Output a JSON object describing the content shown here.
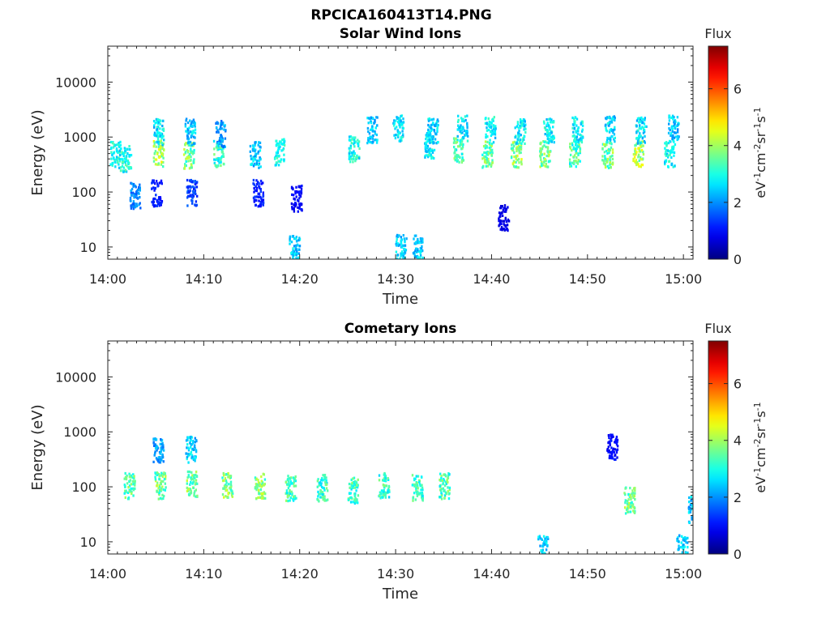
{
  "figure": {
    "title": "RPCICA160413T14.PNG"
  },
  "chart_data": [
    {
      "type": "heatmap",
      "title": "Solar Wind Ions",
      "xlabel": "Time",
      "ylabel": "Energy (eV)",
      "x_ticks": [
        "14:00",
        "14:10",
        "14:20",
        "14:30",
        "14:40",
        "14:50",
        "15:00"
      ],
      "x_range_minutes": [
        0,
        61
      ],
      "y_scale": "log",
      "y_ticks": [
        "10",
        "100",
        "1000",
        "10000"
      ],
      "ylim": [
        6,
        45000
      ],
      "colorbar": {
        "title": "Flux",
        "label": "eV-1cm-2sr-1s-1",
        "range": [
          0,
          7.5
        ],
        "ticks": [
          "0",
          "2",
          "4",
          "6"
        ],
        "colormap": "jet"
      },
      "blobs": [
        {
          "t": 0.7,
          "e": 500,
          "flux": 3.0
        },
        {
          "t": 1.8,
          "e": 420,
          "flux": 3.1
        },
        {
          "t": 2.8,
          "e": 90,
          "flux": 2.0
        },
        {
          "t": 5.2,
          "e": 520,
          "flux": 4.2
        },
        {
          "t": 5.2,
          "e": 1300,
          "flux": 2.8
        },
        {
          "t": 5.0,
          "e": 100,
          "flux": 1.2
        },
        {
          "t": 8.4,
          "e": 480,
          "flux": 3.8
        },
        {
          "t": 8.5,
          "e": 1300,
          "flux": 2.6
        },
        {
          "t": 8.7,
          "e": 100,
          "flux": 1.5
        },
        {
          "t": 11.5,
          "e": 520,
          "flux": 3.3
        },
        {
          "t": 11.7,
          "e": 1200,
          "flux": 2.2
        },
        {
          "t": 15.3,
          "e": 500,
          "flux": 2.6
        },
        {
          "t": 15.6,
          "e": 100,
          "flux": 1.2
        },
        {
          "t": 17.8,
          "e": 560,
          "flux": 3.0
        },
        {
          "t": 19.6,
          "e": 80,
          "flux": 1.0
        },
        {
          "t": 25.6,
          "e": 640,
          "flux": 3.0
        },
        {
          "t": 27.5,
          "e": 1400,
          "flux": 2.5
        },
        {
          "t": 30.2,
          "e": 1500,
          "flux": 2.8
        },
        {
          "t": 33.5,
          "e": 720,
          "flux": 3.0
        },
        {
          "t": 33.8,
          "e": 1400,
          "flux": 2.7
        },
        {
          "t": 36.5,
          "e": 600,
          "flux": 3.5
        },
        {
          "t": 36.9,
          "e": 1500,
          "flux": 2.8
        },
        {
          "t": 39.5,
          "e": 500,
          "flux": 3.8
        },
        {
          "t": 39.8,
          "e": 1400,
          "flux": 2.9
        },
        {
          "t": 42.5,
          "e": 500,
          "flux": 4.0
        },
        {
          "t": 42.9,
          "e": 1300,
          "flux": 2.9
        },
        {
          "t": 45.5,
          "e": 520,
          "flux": 3.8
        },
        {
          "t": 45.9,
          "e": 1300,
          "flux": 2.9
        },
        {
          "t": 48.6,
          "e": 520,
          "flux": 3.5
        },
        {
          "t": 48.9,
          "e": 1400,
          "flux": 2.9
        },
        {
          "t": 52.0,
          "e": 500,
          "flux": 3.8
        },
        {
          "t": 52.3,
          "e": 1450,
          "flux": 2.7
        },
        {
          "t": 55.2,
          "e": 520,
          "flux": 4.3
        },
        {
          "t": 55.5,
          "e": 1400,
          "flux": 2.8
        },
        {
          "t": 58.5,
          "e": 520,
          "flux": 3.0
        },
        {
          "t": 58.9,
          "e": 1500,
          "flux": 2.6
        },
        {
          "t": 19.4,
          "e": 10,
          "flux": 2.6
        },
        {
          "t": 30.5,
          "e": 10,
          "flux": 2.6
        },
        {
          "t": 32.2,
          "e": 10,
          "flux": 2.6
        },
        {
          "t": 41.2,
          "e": 35,
          "flux": 0.8
        }
      ]
    },
    {
      "type": "heatmap",
      "title": "Cometary Ions",
      "xlabel": "Time",
      "ylabel": "Energy (eV)",
      "x_ticks": [
        "14:00",
        "14:10",
        "14:20",
        "14:30",
        "14:40",
        "14:50",
        "15:00"
      ],
      "x_range_minutes": [
        0,
        61
      ],
      "y_scale": "log",
      "y_ticks": [
        "10",
        "100",
        "1000",
        "10000"
      ],
      "ylim": [
        6,
        45000
      ],
      "colorbar": {
        "title": "Flux",
        "label": "eV-1cm-2sr-1s-1",
        "range": [
          0,
          7.5
        ],
        "ticks": [
          "0",
          "2",
          "4",
          "6"
        ],
        "colormap": "jet"
      },
      "blobs": [
        {
          "t": 2.2,
          "e": 110,
          "flux": 3.6
        },
        {
          "t": 5.4,
          "e": 110,
          "flux": 3.8
        },
        {
          "t": 5.2,
          "e": 480,
          "flux": 2.2
        },
        {
          "t": 8.7,
          "e": 120,
          "flux": 3.8
        },
        {
          "t": 8.6,
          "e": 500,
          "flux": 2.6
        },
        {
          "t": 12.4,
          "e": 110,
          "flux": 3.9
        },
        {
          "t": 15.8,
          "e": 110,
          "flux": 3.9
        },
        {
          "t": 19.0,
          "e": 100,
          "flux": 3.5
        },
        {
          "t": 22.3,
          "e": 100,
          "flux": 3.3
        },
        {
          "t": 25.5,
          "e": 90,
          "flux": 3.4
        },
        {
          "t": 28.7,
          "e": 110,
          "flux": 3.3
        },
        {
          "t": 32.2,
          "e": 100,
          "flux": 3.4
        },
        {
          "t": 35.0,
          "e": 110,
          "flux": 3.5
        },
        {
          "t": 54.3,
          "e": 60,
          "flux": 3.8
        },
        {
          "t": 52.5,
          "e": 540,
          "flux": 1.0
        },
        {
          "t": 45.3,
          "e": 8,
          "flux": 2.6
        },
        {
          "t": 59.8,
          "e": 8,
          "flux": 2.6
        },
        {
          "t": 61.0,
          "e": 40,
          "flux": 2.5
        }
      ]
    }
  ]
}
